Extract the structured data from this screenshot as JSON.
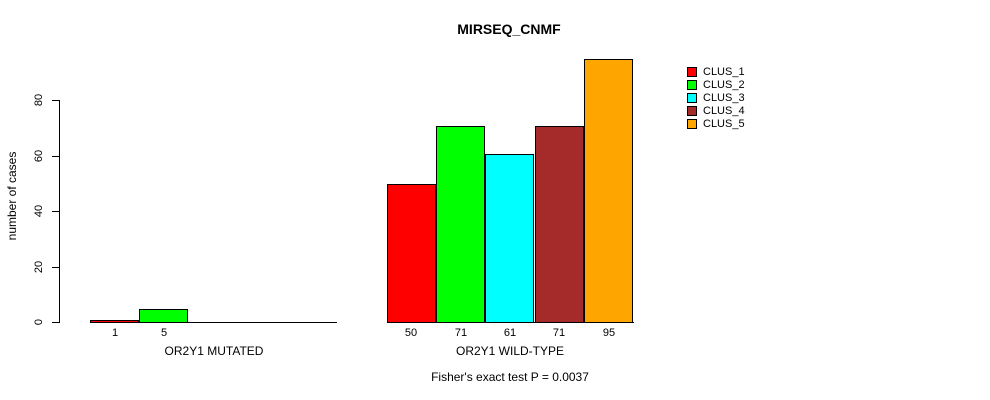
{
  "title": "MIRSEQ_CNMF",
  "y_axis": {
    "label": "number of cases",
    "ticks": [
      "0",
      "20",
      "40",
      "60",
      "80"
    ]
  },
  "legend": {
    "items": [
      {
        "label": "CLUS_1",
        "color": "#FF0000"
      },
      {
        "label": "CLUS_2",
        "color": "#00FF00"
      },
      {
        "label": "CLUS_3",
        "color": "#00FFFF"
      },
      {
        "label": "CLUS_4",
        "color": "#A52A2A"
      },
      {
        "label": "CLUS_5",
        "color": "#FFA500"
      }
    ]
  },
  "footer": "Fisher's exact test P = 0.0037",
  "chart_data": {
    "type": "bar",
    "title": "MIRSEQ_CNMF",
    "ylabel": "number of cases",
    "ylim": [
      0,
      95
    ],
    "yticks": [
      0,
      20,
      40,
      60,
      80
    ],
    "grid": false,
    "legend_position": "right",
    "series": [
      "CLUS_1",
      "CLUS_2",
      "CLUS_3",
      "CLUS_4",
      "CLUS_5"
    ],
    "series_colors": [
      "#FF0000",
      "#00FF00",
      "#00FFFF",
      "#A52A2A",
      "#FFA500"
    ],
    "groups": [
      {
        "label": "OR2Y1 MUTATED",
        "values": [
          1,
          5,
          0,
          0,
          0
        ],
        "value_labels": [
          "1",
          "5",
          "",
          "",
          ""
        ]
      },
      {
        "label": "OR2Y1 WILD-TYPE",
        "values": [
          50,
          71,
          61,
          71,
          95
        ],
        "value_labels": [
          "50",
          "71",
          "61",
          "71",
          "95"
        ]
      }
    ],
    "annotation": "Fisher's exact test P = 0.0037"
  }
}
